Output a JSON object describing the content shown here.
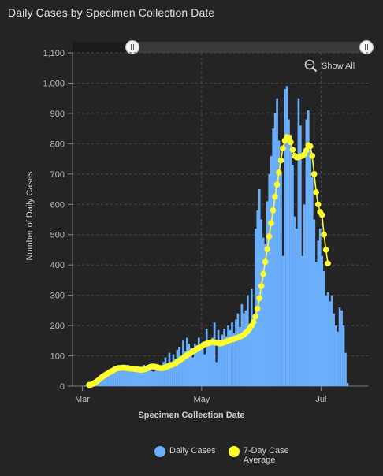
{
  "title": "Daily Cases by Specimen Collection Date",
  "show_all_label": "Show All",
  "colors": {
    "bar": "#6aaefc",
    "line": "#fdfd2f",
    "background": "#242424"
  },
  "chart_data": {
    "type": "bar",
    "title": "Daily Cases by Specimen Collection Date",
    "xlabel": "Specimen Collection Date",
    "ylabel": "Number of Daily Cases",
    "ylim": [
      0,
      1100
    ],
    "yticks": [
      0,
      100,
      200,
      300,
      400,
      500,
      600,
      700,
      800,
      900,
      1000,
      1100
    ],
    "ytick_labels": [
      "0",
      "100",
      "200",
      "300",
      "400",
      "500",
      "600",
      "700",
      "800",
      "900",
      "1,000",
      "1,100"
    ],
    "xlim": [
      "2020-02-25",
      "2020-07-25"
    ],
    "xticks": [
      {
        "date": "2020-03-01",
        "label": "Mar"
      },
      {
        "date": "2020-05-01",
        "label": "May"
      },
      {
        "date": "2020-07-01",
        "label": "Jul"
      }
    ],
    "grid": true,
    "legend_position": "bottom",
    "series": [
      {
        "name": "Daily Cases",
        "type": "bar",
        "x_start": "2020-03-01",
        "values": [
          1,
          2,
          2,
          3,
          5,
          8,
          12,
          18,
          22,
          28,
          30,
          38,
          40,
          45,
          50,
          55,
          60,
          58,
          62,
          65,
          60,
          55,
          62,
          70,
          65,
          60,
          58,
          55,
          48,
          55,
          62,
          70,
          65,
          60,
          55,
          50,
          48,
          52,
          60,
          65,
          58,
          80,
          95,
          60,
          110,
          70,
          105,
          90,
          120,
          130,
          100,
          150,
          115,
          160,
          140,
          125,
          95,
          140,
          135,
          160,
          120,
          145,
          105,
          190,
          150,
          145,
          160,
          210,
          80,
          185,
          140,
          170,
          190,
          165,
          200,
          185,
          210,
          175,
          220,
          240,
          195,
          270,
          240,
          250,
          300,
          205,
          320,
          225,
          520,
          580,
          650,
          550,
          490,
          470,
          610,
          700,
          760,
          850,
          900,
          950,
          810,
          700,
          430,
          980,
          990,
          880,
          830,
          730,
          560,
          520,
          950,
          860,
          430,
          600,
          880,
          910,
          780,
          690,
          550,
          410,
          480,
          520,
          430,
          380,
          300,
          310,
          280,
          300,
          240,
          200,
          180,
          260,
          250,
          200,
          110,
          10
        ],
        "color": "#6aaefc"
      },
      {
        "name": "7-Day Case Average",
        "type": "line",
        "x_start": "2020-03-04",
        "values": [
          4,
          5,
          8,
          12,
          16,
          21,
          27,
          32,
          36,
          40,
          44,
          48,
          51,
          55,
          58,
          60,
          60,
          61,
          61,
          60,
          59,
          58,
          58,
          57,
          56,
          55,
          54,
          54,
          55,
          57,
          60,
          63,
          65,
          65,
          64,
          62,
          60,
          59,
          60,
          62,
          65,
          68,
          70,
          72,
          75,
          80,
          84,
          89,
          93,
          98,
          102,
          106,
          110,
          115,
          118,
          122,
          126,
          130,
          134,
          138,
          140,
          142,
          144,
          146,
          145,
          143,
          142,
          141,
          142,
          144,
          147,
          150,
          152,
          154,
          156,
          158,
          160,
          163,
          166,
          170,
          176,
          182,
          190,
          200,
          212,
          230,
          256,
          290,
          330,
          370,
          410,
          452,
          494,
          538,
          580,
          625,
          665,
          705,
          745,
          785,
          810,
          822,
          820,
          805,
          780,
          760,
          755,
          755,
          758,
          760,
          765,
          778,
          795,
          792,
          760,
          700,
          640,
          600,
          575,
          565,
          500,
          450,
          405
        ]
      }
    ]
  }
}
